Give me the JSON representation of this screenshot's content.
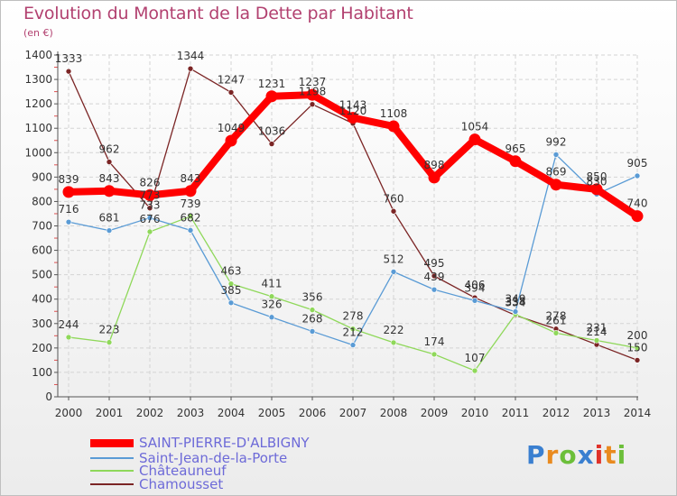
{
  "chart_data": {
    "type": "line",
    "title": "Evolution du Montant de la Dette par Habitant",
    "subtitle": "(en €)",
    "xlabel": "",
    "ylabel": "",
    "x": [
      "2000",
      "2001",
      "2002",
      "2003",
      "2004",
      "2005",
      "2006",
      "2007",
      "2008",
      "2009",
      "2010",
      "2011",
      "2012",
      "2013",
      "2014"
    ],
    "ylim": [
      0,
      1400
    ],
    "yticks": [
      0,
      100,
      200,
      300,
      400,
      500,
      600,
      700,
      800,
      900,
      1000,
      1100,
      1200,
      1300,
      1400
    ],
    "grid": true,
    "legend_position": "bottom-left",
    "series": [
      {
        "name": "SAINT-PIERRE-D'ALBIGNY",
        "color": "#ff0000",
        "values": [
          839,
          843,
          826,
          843,
          1049,
          1231,
          1237,
          1143,
          1108,
          898,
          1054,
          965,
          869,
          850,
          740
        ]
      },
      {
        "name": "Saint-Jean-de-la-Porte",
        "color": "#5a9bd5",
        "values": [
          716,
          681,
          733,
          682,
          385,
          326,
          268,
          212,
          512,
          439,
          394,
          349,
          992,
          830,
          905
        ]
      },
      {
        "name": "Châteauneuf",
        "color": "#8fd85a",
        "values": [
          244,
          223,
          676,
          739,
          463,
          411,
          356,
          278,
          222,
          174,
          107,
          338,
          261,
          231,
          200
        ]
      },
      {
        "name": "Chamousset",
        "color": "#7b2525",
        "values": [
          1333,
          962,
          773,
          1344,
          1247,
          1036,
          1198,
          1120,
          760,
          495,
          406,
          334,
          278,
          214,
          150
        ]
      }
    ]
  },
  "logo": {
    "text": "Proxiti"
  }
}
